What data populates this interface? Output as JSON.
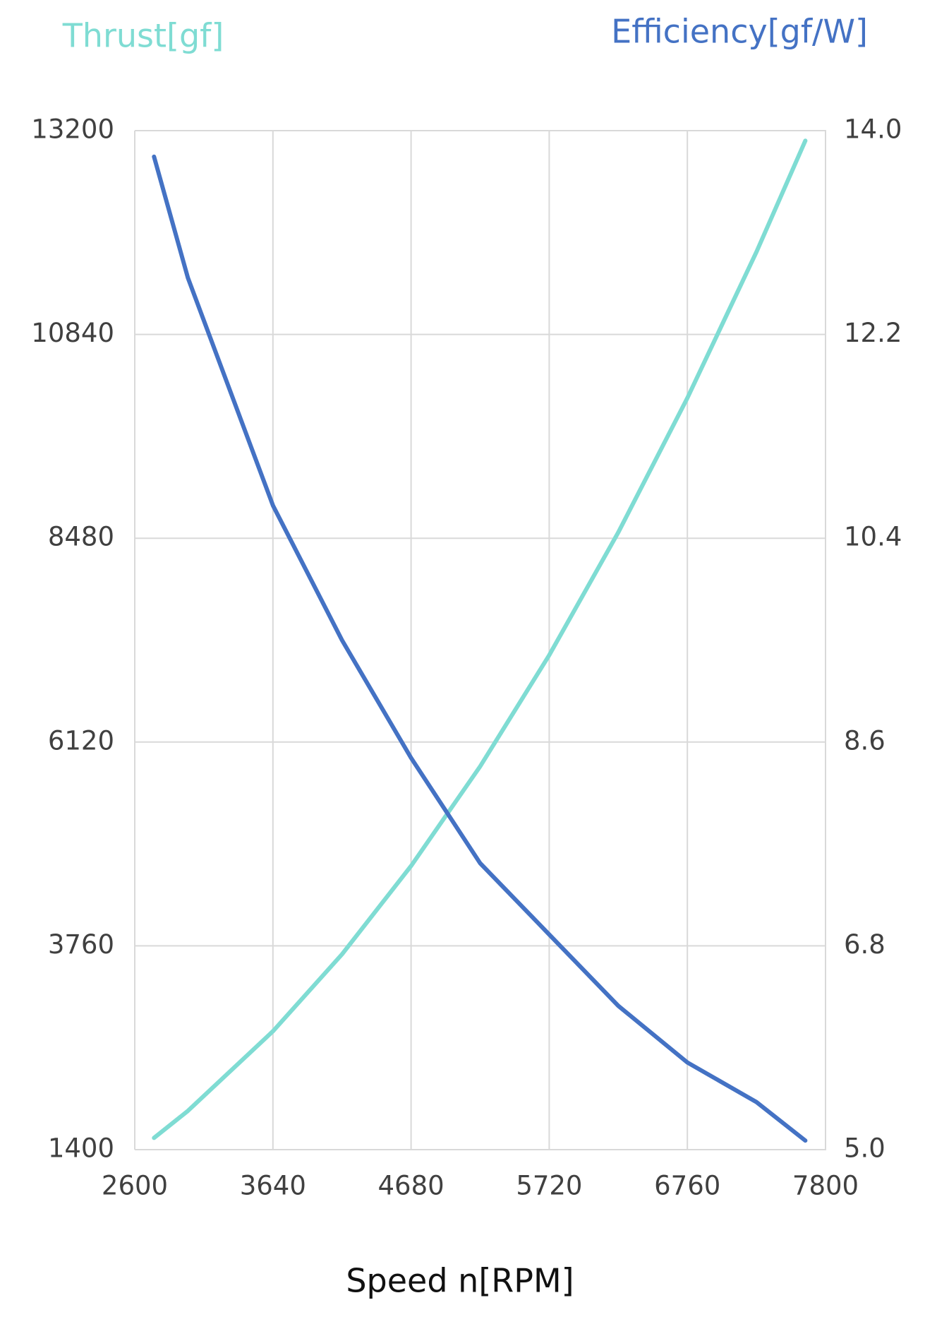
{
  "chart_data": {
    "type": "line",
    "title_left": "Thrust[gf]",
    "title_right": "Efficiency[gf/W]",
    "x_label": "Speed n[RPM]",
    "x": [
      2745,
      3000,
      3640,
      4160,
      4680,
      5200,
      5720,
      6240,
      6760,
      7280,
      7648
    ],
    "series": [
      {
        "name": "Thrust[gf]",
        "color": "#7fdcd3",
        "axis": "y",
        "values": [
          1536,
          1849,
          2771,
          3662,
          4685,
          5838,
          7126,
          8548,
          10104,
          11795,
          13083
        ]
      },
      {
        "name": "Efficiency[gf/W]",
        "color": "#4472c4",
        "axis": "y2",
        "values": [
          13.77,
          12.7,
          10.69,
          9.5,
          8.46,
          7.53,
          6.9,
          6.27,
          5.77,
          5.42,
          5.08
        ]
      }
    ],
    "xlim": [
      2600,
      7800
    ],
    "xticks": [
      2600,
      3640,
      4680,
      5720,
      6760,
      7800
    ],
    "ylim": [
      1400,
      13200
    ],
    "yticks": [
      1400,
      3760,
      6120,
      8480,
      10840,
      13200
    ],
    "y2lim": [
      5,
      14
    ],
    "y2ticks": [
      {
        "value": 5,
        "label": "5.0"
      },
      6.8,
      8.6,
      10.4,
      12.2,
      {
        "value": 14,
        "label": "14.0"
      }
    ],
    "grid": true
  }
}
